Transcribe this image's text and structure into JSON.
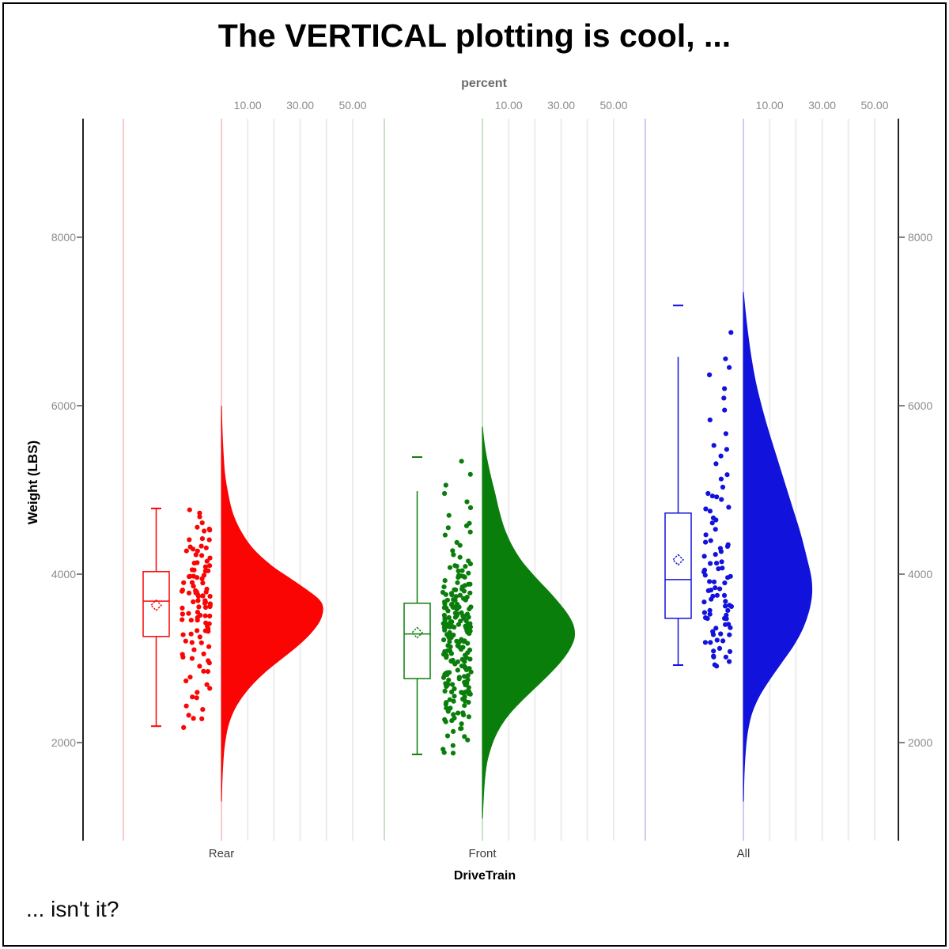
{
  "title": "The VERTICAL plotting is cool, ...",
  "footnote": "... isn't it?",
  "top_axis": {
    "label": "percent",
    "tick_labels": [
      "10.00",
      "30.00",
      "50.00"
    ],
    "tick_values": [
      10,
      30,
      50
    ],
    "gridline_values": [
      10,
      20,
      30,
      40,
      50
    ]
  },
  "y_axis": {
    "label": "Weight (LBS)",
    "ticks": [
      2000,
      4000,
      6000,
      8000
    ],
    "sides": "left and right"
  },
  "x_axis": {
    "label": "DriveTrain",
    "categories": [
      "Rear",
      "Front",
      "All"
    ]
  },
  "colors": {
    "rear": "#fa0404",
    "front": "#0a7e0a",
    "all": "#1212dd",
    "rear_light": "#f8bcbc",
    "front_light": "#b9dab9",
    "all_light": "#bfbff0",
    "gridline": "#ececec",
    "axis_line": "#0a0a0a",
    "tick_text": "#8b8b8b",
    "box_fill": "#ffffff"
  },
  "chart_data": {
    "type": "raincloud (half-violin + box plot + jittered scatter), vertical orientation",
    "value_unit": "Weight (LBS)",
    "percent_axis": {
      "labels_at": [
        10,
        30,
        50
      ],
      "gridlines_at": [
        10,
        20,
        30,
        40,
        50
      ]
    },
    "groups": [
      {
        "name": "Rear",
        "color": "#fa0404",
        "color_light": "#f8bcbc",
        "box": {
          "whisker_low": 2195,
          "q1": 3260,
          "median": 3680,
          "mean": 3630,
          "q3": 4030,
          "whisker_high": 4780,
          "cap_top": true,
          "cap_bottom": true
        },
        "outliers": [],
        "violin_profile_lbs_pct": [
          [
            6000,
            0
          ],
          [
            5600,
            0.4
          ],
          [
            5200,
            1.2
          ],
          [
            4900,
            2.8
          ],
          [
            4700,
            4.5
          ],
          [
            4500,
            7.5
          ],
          [
            4300,
            12
          ],
          [
            4100,
            19
          ],
          [
            3950,
            26
          ],
          [
            3800,
            33
          ],
          [
            3700,
            37
          ],
          [
            3600,
            38.6
          ],
          [
            3450,
            37.5
          ],
          [
            3300,
            34
          ],
          [
            3150,
            29
          ],
          [
            3000,
            23
          ],
          [
            2850,
            17
          ],
          [
            2700,
            12
          ],
          [
            2550,
            8
          ],
          [
            2400,
            5
          ],
          [
            2250,
            3
          ],
          [
            2100,
            1.8
          ],
          [
            1900,
            0.9
          ],
          [
            1600,
            0.3
          ],
          [
            1300,
            0
          ]
        ],
        "scatter": {
          "count": 110,
          "seed": 7,
          "quantiles": [
            [
              0,
              2195
            ],
            [
              0.03,
              2315
            ],
            [
              0.06,
              2520
            ],
            [
              0.12,
              2835
            ],
            [
              0.25,
              3260
            ],
            [
              0.4,
              3525
            ],
            [
              0.5,
              3680
            ],
            [
              0.62,
              3815
            ],
            [
              0.75,
              4030
            ],
            [
              0.88,
              4310
            ],
            [
              0.96,
              4575
            ],
            [
              1,
              4780
            ]
          ]
        }
      },
      {
        "name": "Front",
        "color": "#0a7e0a",
        "color_light": "#b9dab9",
        "box": {
          "whisker_low": 1860,
          "q1": 2760,
          "median": 3290,
          "mean": 3305,
          "q3": 3655,
          "whisker_high": 4985,
          "cap_top": false,
          "cap_bottom": true
        },
        "outliers": [
          5390
        ],
        "violin_profile_lbs_pct": [
          [
            5750,
            0
          ],
          [
            5550,
            0.7
          ],
          [
            5350,
            1.8
          ],
          [
            5150,
            3.2
          ],
          [
            4950,
            4.8
          ],
          [
            4750,
            6.3
          ],
          [
            4550,
            8.2
          ],
          [
            4350,
            11
          ],
          [
            4150,
            15
          ],
          [
            3950,
            20.5
          ],
          [
            3750,
            26.5
          ],
          [
            3550,
            31.8
          ],
          [
            3400,
            34.5
          ],
          [
            3250,
            35
          ],
          [
            3100,
            33
          ],
          [
            2950,
            29.5
          ],
          [
            2800,
            25
          ],
          [
            2650,
            20
          ],
          [
            2500,
            15
          ],
          [
            2350,
            10.5
          ],
          [
            2200,
            7
          ],
          [
            2050,
            4.5
          ],
          [
            1900,
            2.8
          ],
          [
            1750,
            1.6
          ],
          [
            1550,
            0.8
          ],
          [
            1300,
            0.3
          ],
          [
            1100,
            0
          ]
        ],
        "scatter": {
          "count": 226,
          "seed": 13,
          "quantiles": [
            [
              0,
              1850
            ],
            [
              0.015,
              1990
            ],
            [
              0.05,
              2255
            ],
            [
              0.12,
              2505
            ],
            [
              0.25,
              2760
            ],
            [
              0.4,
              3090
            ],
            [
              0.5,
              3290
            ],
            [
              0.62,
              3450
            ],
            [
              0.75,
              3655
            ],
            [
              0.85,
              3875
            ],
            [
              0.92,
              4145
            ],
            [
              0.97,
              4660
            ],
            [
              0.99,
              5080
            ],
            [
              1,
              5390
            ]
          ]
        }
      },
      {
        "name": "All",
        "color": "#1212dd",
        "color_light": "#bfbff0",
        "box": {
          "whisker_low": 2920,
          "q1": 3475,
          "median": 3935,
          "mean": 4170,
          "q3": 4725,
          "whisker_high": 6580,
          "cap_top": false,
          "cap_bottom": true
        },
        "outliers": [
          7190
        ],
        "violin_profile_lbs_pct": [
          [
            7350,
            0
          ],
          [
            7150,
            0.6
          ],
          [
            6900,
            1.5
          ],
          [
            6600,
            2.8
          ],
          [
            6300,
            4.5
          ],
          [
            6000,
            6.8
          ],
          [
            5700,
            9.5
          ],
          [
            5400,
            12.5
          ],
          [
            5100,
            15.5
          ],
          [
            4800,
            18.5
          ],
          [
            4500,
            21.5
          ],
          [
            4200,
            24
          ],
          [
            3950,
            25.8
          ],
          [
            3750,
            26
          ],
          [
            3550,
            24.8
          ],
          [
            3350,
            22.5
          ],
          [
            3150,
            19
          ],
          [
            2950,
            14.5
          ],
          [
            2750,
            10
          ],
          [
            2550,
            6
          ],
          [
            2350,
            3.2
          ],
          [
            2150,
            1.7
          ],
          [
            1950,
            0.9
          ],
          [
            1650,
            0.3
          ],
          [
            1300,
            0
          ]
        ],
        "scatter": {
          "count": 92,
          "seed": 21,
          "quantiles": [
            [
              0,
              2900
            ],
            [
              0.04,
              2995
            ],
            [
              0.1,
              3160
            ],
            [
              0.25,
              3475
            ],
            [
              0.4,
              3730
            ],
            [
              0.5,
              3935
            ],
            [
              0.6,
              4140
            ],
            [
              0.7,
              4450
            ],
            [
              0.75,
              4725
            ],
            [
              0.82,
              4960
            ],
            [
              0.9,
              5570
            ],
            [
              0.96,
              6330
            ],
            [
              0.99,
              6600
            ],
            [
              1,
              7190
            ]
          ]
        }
      }
    ]
  }
}
